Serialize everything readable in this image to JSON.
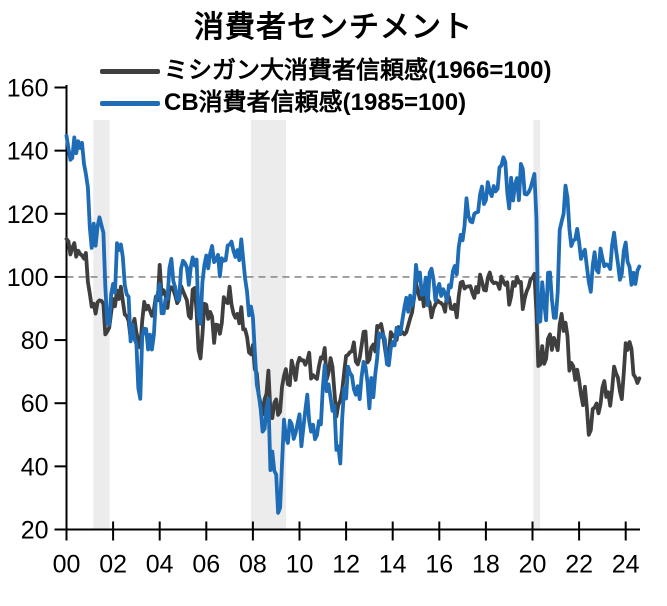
{
  "chart_data": {
    "type": "line",
    "title": "消費者センチメント",
    "x_axis": {
      "start_year": 2000,
      "interval": "monthly",
      "tick_labels": [
        "00",
        "02",
        "04",
        "06",
        "08",
        "10",
        "12",
        "14",
        "16",
        "18",
        "20",
        "22",
        "24"
      ]
    },
    "y_axis": {
      "tick_labels": [
        "20",
        "40",
        "60",
        "80",
        "100",
        "120",
        "140",
        "160"
      ],
      "ylim": [
        20,
        160
      ]
    },
    "reference_line_y": 100,
    "recession_bands": [
      [
        2001.15,
        2001.85
      ],
      [
        2007.92,
        2009.42
      ],
      [
        2020.04,
        2020.33
      ]
    ],
    "colors": {
      "michigan_line": "#3F3F3F",
      "cb_line": "#1E6CB5",
      "reference_line": "#8C8C8C",
      "recession_band": "#ECECEC",
      "axis": "#000000"
    },
    "series": [
      {
        "id": "michigan",
        "name": "ミシガン大消費者信頼感(1966=100)",
        "color": "#3F3F3F",
        "values": [
          112,
          111.3,
          107.1,
          109.2,
          110.7,
          106.4,
          108.3,
          107.3,
          106.8,
          105.8,
          107.6,
          98.4,
          94.7,
          90.6,
          91.5,
          88.4,
          92,
          92.6,
          92.4,
          91.5,
          81.8,
          82.7,
          83.9,
          88.8,
          93,
          90.7,
          95.7,
          93,
          96.9,
          92.4,
          88.1,
          87.6,
          86.1,
          80.6,
          84.2,
          86.7,
          82.4,
          79.9,
          77.6,
          86,
          92.1,
          89.7,
          90.9,
          89.3,
          87.7,
          89.6,
          93.7,
          92.6,
          103.8,
          94.4,
          95.8,
          94.2,
          90.2,
          95.6,
          96.7,
          95.9,
          94.2,
          91.7,
          92.8,
          97.1,
          95.5,
          94.1,
          92.6,
          87.7,
          86.9,
          96,
          96.5,
          89.1,
          76.9,
          74.2,
          81.6,
          91.5,
          91.2,
          86.7,
          88.9,
          87.4,
          79.1,
          84.9,
          84.7,
          82,
          85.4,
          93.6,
          92.1,
          91.7,
          96.9,
          91.3,
          88.4,
          87.1,
          88.3,
          85.3,
          90.4,
          83.4,
          83.4,
          80.9,
          76.1,
          75.5,
          78.4,
          70.8,
          69.5,
          62.6,
          59.8,
          56.4,
          61.2,
          63,
          70.3,
          57.6,
          55.3,
          60.1,
          61.2,
          56.3,
          57.3,
          65.1,
          68.7,
          70.8,
          66,
          65.7,
          73.5,
          70.6,
          67.4,
          72.5,
          74.4,
          73.6,
          73.6,
          72.2,
          73.6,
          76,
          67.8,
          68.9,
          68.2,
          67.7,
          71.6,
          74.5,
          74.2,
          77.5,
          67.5,
          69.8,
          74.3,
          71.5,
          63.7,
          55.8,
          59.4,
          60.9,
          64.1,
          69.9,
          75,
          75.3,
          76.2,
          76.4,
          79.3,
          73.2,
          72.3,
          74.3,
          78.3,
          82.6,
          82.7,
          72.9,
          73.8,
          77.6,
          78.6,
          76.4,
          84.5,
          84.1,
          85.1,
          82.1,
          77.5,
          73.2,
          75.1,
          82.5,
          81.2,
          81.6,
          80,
          84.1,
          81.9,
          82.5,
          81.8,
          82.5,
          84.6,
          86.9,
          88.8,
          93.6,
          98.1,
          95.4,
          93,
          95.9,
          90.7,
          96.1,
          93.1,
          91.9,
          87.2,
          90,
          91.3,
          92.6,
          92,
          91.7,
          91,
          89,
          94.7,
          93.5,
          90,
          89.8,
          91.2,
          87.2,
          93.8,
          98.2,
          98.5,
          96.3,
          96.9,
          97,
          97.1,
          95,
          93.4,
          96.8,
          95.1,
          100.7,
          98.5,
          95.9,
          95.7,
          99.7,
          101.4,
          98.8,
          98,
          98.2,
          97.9,
          96.2,
          100.1,
          98.6,
          97.5,
          98.3,
          91.2,
          93.8,
          98.4,
          97.2,
          100,
          98.2,
          98.4,
          89.8,
          93.2,
          95.5,
          96.8,
          99.3,
          99.8,
          101,
          89.1,
          71.8,
          72.3,
          78.1,
          72.5,
          74.1,
          80.4,
          81.8,
          76.9,
          80.7,
          79,
          76.8,
          84.9,
          88.3,
          82.9,
          85.5,
          81.2,
          70.3,
          72.8,
          71.7,
          67.4,
          70.6,
          67.2,
          62.8,
          59.4,
          65.2,
          58.4,
          50,
          51.5,
          58.2,
          58.6,
          59.9,
          56.8,
          59.7,
          64.9,
          67,
          62,
          63.5,
          59.2,
          64.4,
          71.6,
          69.5,
          68.1,
          63.8,
          61.3,
          69.7,
          79,
          76.9,
          79.4,
          77.2,
          69.1,
          68.2,
          66.4,
          67.9
        ]
      },
      {
        "id": "cb",
        "name": "CB消費者信頼感(1985=100)",
        "color": "#1E6CB5",
        "values": [
          144.7,
          140.8,
          137.1,
          137.7,
          144.2,
          139.2,
          143,
          140.8,
          142.5,
          135.8,
          132.6,
          128.3,
          115.7,
          109.2,
          116.9,
          109.9,
          116.1,
          118.9,
          116.3,
          114,
          97,
          85.3,
          84.9,
          94.6,
          97.8,
          95,
          110.7,
          108.5,
          110.3,
          106.3,
          97.4,
          94.5,
          93.7,
          79.6,
          84.9,
          80.3,
          78.8,
          64.8,
          61.4,
          81,
          83.6,
          83.5,
          77,
          81.7,
          77,
          81.7,
          92.5,
          94.8,
          97.7,
          88.5,
          88.5,
          93,
          93.1,
          102.8,
          105.7,
          98.7,
          96.7,
          92.9,
          92.6,
          102.7,
          105.1,
          104.4,
          103,
          97.5,
          103.1,
          106.2,
          103.6,
          105.5,
          87.5,
          85.2,
          98.3,
          103.8,
          106.8,
          102.7,
          107.5,
          109.8,
          104.7,
          105.4,
          107,
          100.2,
          105.9,
          105.1,
          105.3,
          110,
          110.2,
          111.2,
          108.2,
          106.3,
          108.5,
          105.3,
          111.9,
          105.6,
          99.5,
          95.2,
          87.8,
          90.6,
          87.3,
          76.4,
          65.9,
          62.8,
          58.1,
          51,
          51.9,
          58.5,
          61.4,
          38.8,
          44.7,
          38.6,
          37.4,
          25.3,
          26.9,
          40.8,
          54.8,
          49.3,
          47.4,
          54.5,
          53.4,
          48.7,
          50.6,
          53.6,
          56.5,
          46.4,
          52.3,
          57.7,
          62.7,
          54.3,
          51,
          53.2,
          48.6,
          49.9,
          54.3,
          53.3,
          64.8,
          72,
          63.8,
          66,
          61.7,
          57.6,
          59.2,
          45.2,
          46.4,
          40.9,
          55.2,
          64.8,
          61.5,
          71.6,
          69.5,
          68.7,
          64.4,
          62.7,
          65.4,
          61.3,
          68.4,
          73.1,
          71.5,
          66.7,
          58.4,
          68,
          61.9,
          69,
          74.3,
          82.1,
          81,
          81.8,
          80.2,
          72.4,
          72,
          77.5,
          79.4,
          78.3,
          83.9,
          81.7,
          82.2,
          86.4,
          90.3,
          93.4,
          89,
          94.1,
          91,
          93.1,
          103.8,
          98.8,
          101.4,
          94.3,
          94.6,
          99.8,
          91,
          101.3,
          102.6,
          99.1,
          92.6,
          96.3,
          97.8,
          94,
          96.1,
          94.7,
          92.4,
          97.4,
          96.7,
          101.8,
          103.5,
          100.8,
          109.4,
          113.3,
          111.6,
          116.1,
          124.9,
          119.4,
          117.6,
          117.3,
          120,
          120.4,
          120.6,
          126.2,
          128.6,
          123.1,
          124.3,
          130,
          127,
          125.6,
          128.8,
          127.1,
          127.9,
          134.7,
          135.3,
          137.9,
          136.4,
          126.6,
          121.7,
          131.4,
          124.2,
          129.2,
          131.3,
          124.3,
          135.8,
          134.2,
          126.3,
          126.1,
          126.8,
          128.2,
          130.4,
          132.6,
          118.8,
          85.7,
          85.9,
          98.3,
          91.7,
          86.3,
          101.3,
          101.4,
          92.9,
          87.1,
          87.1,
          95.2,
          114.9,
          117.5,
          120,
          128.9,
          125.1,
          115.2,
          109.8,
          111.6,
          111.9,
          115.2,
          111.1,
          105.7,
          107.6,
          108.6,
          103.2,
          98.4,
          95.3,
          103.6,
          107.8,
          102.2,
          101.4,
          109,
          106,
          103.4,
          104,
          103.7,
          102.5,
          110.1,
          114,
          108.7,
          104.3,
          99.1,
          101,
          108.3,
          110.9,
          104.8,
          103.1,
          97.5,
          101.3,
          97.8,
          101.9,
          103.3
        ]
      }
    ],
    "legend_position": "top-left-inside"
  }
}
